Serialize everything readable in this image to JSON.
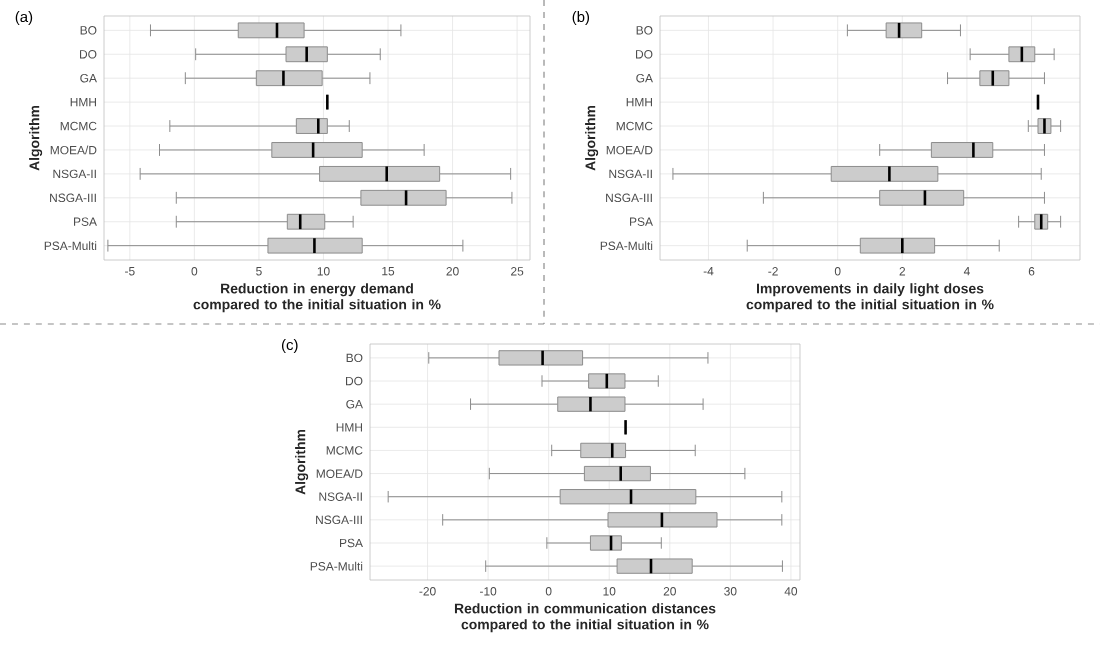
{
  "chart_data": [
    {
      "type": "box",
      "title": "(a)",
      "orientation": "horizontal",
      "grid": true,
      "color": "#cccccc",
      "ylabel": "Algorithm",
      "xlabel": "Reduction in energy demand compared to the initial situation in %",
      "categories": [
        "BO",
        "DO",
        "GA",
        "HMH",
        "MCMC",
        "MOEA/D",
        "NSGA-II",
        "NSGA-III",
        "PSA",
        "PSA-Multi"
      ],
      "xlim": [
        -7,
        26
      ],
      "xticks": [
        -5,
        0,
        5,
        10,
        15,
        20,
        25
      ],
      "boxes": [
        {
          "low": -3.4,
          "q1": 3.4,
          "median": 6.4,
          "q3": 8.5,
          "high": 16.0
        },
        {
          "low": 0.1,
          "q1": 7.1,
          "median": 8.7,
          "q3": 10.3,
          "high": 14.4
        },
        {
          "low": -0.7,
          "q1": 4.8,
          "median": 6.9,
          "q3": 9.9,
          "high": 13.6
        },
        {
          "low": 10.3,
          "q1": 10.3,
          "median": 10.3,
          "q3": 10.3,
          "high": 10.3
        },
        {
          "low": -1.9,
          "q1": 7.9,
          "median": 9.6,
          "q3": 10.3,
          "high": 12.0
        },
        {
          "low": -2.7,
          "q1": 6.0,
          "median": 9.2,
          "q3": 13.0,
          "high": 17.8
        },
        {
          "low": -4.2,
          "q1": 9.7,
          "median": 14.9,
          "q3": 19.0,
          "high": 24.5
        },
        {
          "low": -1.4,
          "q1": 12.9,
          "median": 16.4,
          "q3": 19.5,
          "high": 24.6
        },
        {
          "low": -1.4,
          "q1": 7.2,
          "median": 8.2,
          "q3": 10.1,
          "high": 12.3
        },
        {
          "low": -6.7,
          "q1": 5.7,
          "median": 9.3,
          "q3": 13.0,
          "high": 20.8
        }
      ]
    },
    {
      "type": "box",
      "title": "(b)",
      "orientation": "horizontal",
      "grid": true,
      "color": "#cccccc",
      "ylabel": "Algorithm",
      "xlabel": "Improvements in daily light doses compared to the initial situation in %",
      "categories": [
        "BO",
        "DO",
        "GA",
        "HMH",
        "MCMC",
        "MOEA/D",
        "NSGA-II",
        "NSGA-III",
        "PSA",
        "PSA-Multi"
      ],
      "xlim": [
        -5.5,
        7.5
      ],
      "xticks": [
        -4,
        -2,
        0,
        2,
        4,
        6
      ],
      "boxes": [
        {
          "low": 0.3,
          "q1": 1.5,
          "median": 1.9,
          "q3": 2.6,
          "high": 3.8
        },
        {
          "low": 4.1,
          "q1": 5.3,
          "median": 5.7,
          "q3": 6.1,
          "high": 6.7
        },
        {
          "low": 3.4,
          "q1": 4.4,
          "median": 4.8,
          "q3": 5.3,
          "high": 6.4
        },
        {
          "low": 6.2,
          "q1": 6.2,
          "median": 6.2,
          "q3": 6.2,
          "high": 6.2
        },
        {
          "low": 5.9,
          "q1": 6.2,
          "median": 6.4,
          "q3": 6.6,
          "high": 6.9
        },
        {
          "low": 1.3,
          "q1": 2.9,
          "median": 4.2,
          "q3": 4.8,
          "high": 6.4
        },
        {
          "low": -5.1,
          "q1": -0.2,
          "median": 1.6,
          "q3": 3.1,
          "high": 6.3
        },
        {
          "low": -2.3,
          "q1": 1.3,
          "median": 2.7,
          "q3": 3.9,
          "high": 6.4
        },
        {
          "low": 5.6,
          "q1": 6.1,
          "median": 6.3,
          "q3": 6.5,
          "high": 6.9
        },
        {
          "low": -2.8,
          "q1": 0.7,
          "median": 2.0,
          "q3": 3.0,
          "high": 5.0
        }
      ]
    },
    {
      "type": "box",
      "title": "(c)",
      "orientation": "horizontal",
      "grid": true,
      "color": "#cccccc",
      "ylabel": "Algorithm",
      "xlabel": "Reduction in communication distances compared to the initial situation in %",
      "categories": [
        "BO",
        "DO",
        "GA",
        "HMH",
        "MCMC",
        "MOEA/D",
        "NSGA-II",
        "NSGA-III",
        "PSA",
        "PSA-Multi"
      ],
      "xlim": [
        -29.5,
        41.5
      ],
      "xticks": [
        -20,
        -10,
        0,
        10,
        20,
        30,
        40
      ],
      "boxes": [
        {
          "low": -19.8,
          "q1": -8.2,
          "median": -1.0,
          "q3": 5.6,
          "high": 26.3
        },
        {
          "low": -1.1,
          "q1": 6.6,
          "median": 9.6,
          "q3": 12.6,
          "high": 18.1
        },
        {
          "low": -12.9,
          "q1": 1.5,
          "median": 6.9,
          "q3": 12.6,
          "high": 25.5
        },
        {
          "low": 12.7,
          "q1": 12.7,
          "median": 12.7,
          "q3": 12.7,
          "high": 12.7
        },
        {
          "low": 0.5,
          "q1": 5.3,
          "median": 10.5,
          "q3": 12.7,
          "high": 24.2
        },
        {
          "low": -9.8,
          "q1": 5.9,
          "median": 11.9,
          "q3": 16.8,
          "high": 32.4
        },
        {
          "low": -26.5,
          "q1": 1.9,
          "median": 13.6,
          "q3": 24.3,
          "high": 38.5
        },
        {
          "low": -17.5,
          "q1": 9.8,
          "median": 18.7,
          "q3": 27.8,
          "high": 38.5
        },
        {
          "low": -0.3,
          "q1": 6.9,
          "median": 10.3,
          "q3": 12.0,
          "high": 18.6
        },
        {
          "low": -10.4,
          "q1": 11.3,
          "median": 16.9,
          "q3": 23.7,
          "high": 38.6
        }
      ]
    }
  ]
}
